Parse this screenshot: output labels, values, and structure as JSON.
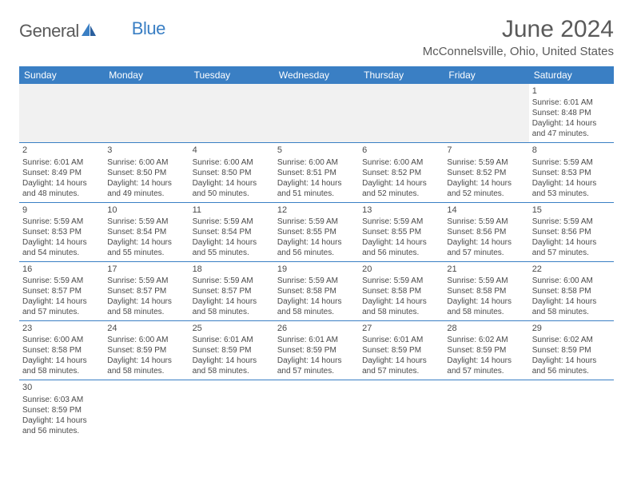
{
  "logo": {
    "general": "General",
    "blue": "Blue"
  },
  "title": "June 2024",
  "location": "McConnelsville, Ohio, United States",
  "colors": {
    "header_bg": "#3a7fc4",
    "header_text": "#ffffff",
    "body_text": "#4a4a4a",
    "title_text": "#5a5a5a",
    "blank_bg": "#f1f1f1",
    "border": "#3a7fc4",
    "logo_gray": "#5a5a5a",
    "logo_blue": "#3a7fc4"
  },
  "day_headers": [
    "Sunday",
    "Monday",
    "Tuesday",
    "Wednesday",
    "Thursday",
    "Friday",
    "Saturday"
  ],
  "days": {
    "1": {
      "sunrise": "6:01 AM",
      "sunset": "8:48 PM",
      "dh": 14,
      "dm": 47
    },
    "2": {
      "sunrise": "6:01 AM",
      "sunset": "8:49 PM",
      "dh": 14,
      "dm": 48
    },
    "3": {
      "sunrise": "6:00 AM",
      "sunset": "8:50 PM",
      "dh": 14,
      "dm": 49
    },
    "4": {
      "sunrise": "6:00 AM",
      "sunset": "8:50 PM",
      "dh": 14,
      "dm": 50
    },
    "5": {
      "sunrise": "6:00 AM",
      "sunset": "8:51 PM",
      "dh": 14,
      "dm": 51
    },
    "6": {
      "sunrise": "6:00 AM",
      "sunset": "8:52 PM",
      "dh": 14,
      "dm": 52
    },
    "7": {
      "sunrise": "5:59 AM",
      "sunset": "8:52 PM",
      "dh": 14,
      "dm": 52
    },
    "8": {
      "sunrise": "5:59 AM",
      "sunset": "8:53 PM",
      "dh": 14,
      "dm": 53
    },
    "9": {
      "sunrise": "5:59 AM",
      "sunset": "8:53 PM",
      "dh": 14,
      "dm": 54
    },
    "10": {
      "sunrise": "5:59 AM",
      "sunset": "8:54 PM",
      "dh": 14,
      "dm": 55
    },
    "11": {
      "sunrise": "5:59 AM",
      "sunset": "8:54 PM",
      "dh": 14,
      "dm": 55
    },
    "12": {
      "sunrise": "5:59 AM",
      "sunset": "8:55 PM",
      "dh": 14,
      "dm": 56
    },
    "13": {
      "sunrise": "5:59 AM",
      "sunset": "8:55 PM",
      "dh": 14,
      "dm": 56
    },
    "14": {
      "sunrise": "5:59 AM",
      "sunset": "8:56 PM",
      "dh": 14,
      "dm": 57
    },
    "15": {
      "sunrise": "5:59 AM",
      "sunset": "8:56 PM",
      "dh": 14,
      "dm": 57
    },
    "16": {
      "sunrise": "5:59 AM",
      "sunset": "8:57 PM",
      "dh": 14,
      "dm": 57
    },
    "17": {
      "sunrise": "5:59 AM",
      "sunset": "8:57 PM",
      "dh": 14,
      "dm": 58
    },
    "18": {
      "sunrise": "5:59 AM",
      "sunset": "8:57 PM",
      "dh": 14,
      "dm": 58
    },
    "19": {
      "sunrise": "5:59 AM",
      "sunset": "8:58 PM",
      "dh": 14,
      "dm": 58
    },
    "20": {
      "sunrise": "5:59 AM",
      "sunset": "8:58 PM",
      "dh": 14,
      "dm": 58
    },
    "21": {
      "sunrise": "5:59 AM",
      "sunset": "8:58 PM",
      "dh": 14,
      "dm": 58
    },
    "22": {
      "sunrise": "6:00 AM",
      "sunset": "8:58 PM",
      "dh": 14,
      "dm": 58
    },
    "23": {
      "sunrise": "6:00 AM",
      "sunset": "8:58 PM",
      "dh": 14,
      "dm": 58
    },
    "24": {
      "sunrise": "6:00 AM",
      "sunset": "8:59 PM",
      "dh": 14,
      "dm": 58
    },
    "25": {
      "sunrise": "6:01 AM",
      "sunset": "8:59 PM",
      "dh": 14,
      "dm": 58
    },
    "26": {
      "sunrise": "6:01 AM",
      "sunset": "8:59 PM",
      "dh": 14,
      "dm": 57
    },
    "27": {
      "sunrise": "6:01 AM",
      "sunset": "8:59 PM",
      "dh": 14,
      "dm": 57
    },
    "28": {
      "sunrise": "6:02 AM",
      "sunset": "8:59 PM",
      "dh": 14,
      "dm": 57
    },
    "29": {
      "sunrise": "6:02 AM",
      "sunset": "8:59 PM",
      "dh": 14,
      "dm": 56
    },
    "30": {
      "sunrise": "6:03 AM",
      "sunset": "8:59 PM",
      "dh": 14,
      "dm": 56
    }
  },
  "labels": {
    "sunrise": "Sunrise: ",
    "sunset": "Sunset: ",
    "daylight1": "Daylight: ",
    "hours": " hours",
    "and": "and ",
    "minutes": " minutes."
  },
  "layout": [
    [
      null,
      null,
      null,
      null,
      null,
      null,
      "1"
    ],
    [
      "2",
      "3",
      "4",
      "5",
      "6",
      "7",
      "8"
    ],
    [
      "9",
      "10",
      "11",
      "12",
      "13",
      "14",
      "15"
    ],
    [
      "16",
      "17",
      "18",
      "19",
      "20",
      "21",
      "22"
    ],
    [
      "23",
      "24",
      "25",
      "26",
      "27",
      "28",
      "29"
    ],
    [
      "30",
      null,
      null,
      null,
      null,
      null,
      null
    ]
  ]
}
